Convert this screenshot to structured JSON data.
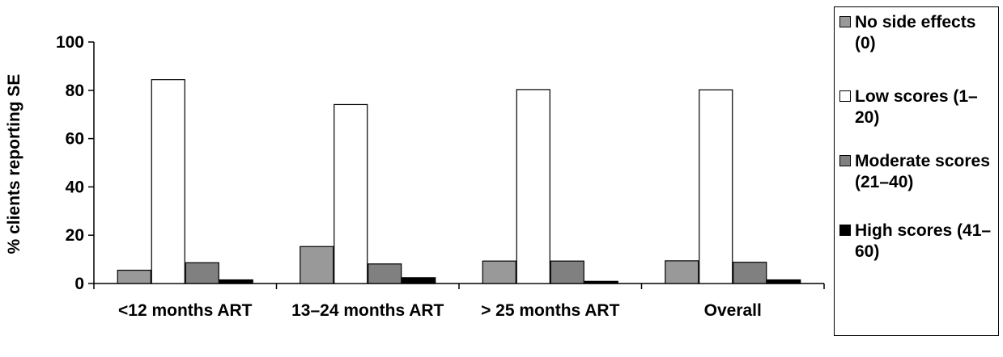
{
  "chart_data": {
    "type": "bar",
    "ylabel": "% clients reporting SE",
    "xlabel": "",
    "ylim": [
      0,
      100
    ],
    "yticks": [
      0,
      20,
      40,
      60,
      80,
      100
    ],
    "categories": [
      "<12 months ART",
      "13–24 months ART",
      "> 25 months ART",
      "Overall"
    ],
    "series": [
      {
        "name": "No side effects (0)",
        "color": "#999999",
        "values": [
          5.5,
          15.3,
          9.3,
          9.4
        ]
      },
      {
        "name": "Low scores (1–20)",
        "color": "#ffffff",
        "values": [
          84.4,
          74.1,
          80.3,
          80.2
        ]
      },
      {
        "name": "Moderate scores (21–40)",
        "color": "#808080",
        "values": [
          8.6,
          8.1,
          9.3,
          8.8
        ]
      },
      {
        "name": "High scores (41–60)",
        "color": "#000000",
        "values": [
          1.5,
          2.4,
          0.9,
          1.5
        ]
      }
    ],
    "legend_position": "right",
    "grid": false
  }
}
